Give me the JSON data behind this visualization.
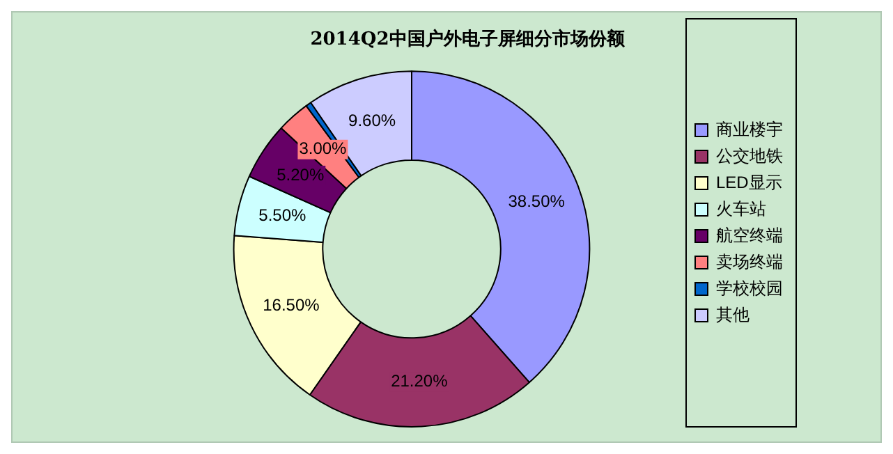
{
  "chart_data": {
    "type": "donut",
    "title": "2014Q2中国户外电子屏细分市场份额",
    "categories": [
      "商业楼宇",
      "公交地铁",
      "LED显示",
      "火车站",
      "航空终端",
      "卖场终端",
      "学校校园",
      "其他"
    ],
    "values": [
      38.5,
      21.2,
      16.5,
      5.5,
      5.2,
      3.0,
      0.5,
      9.6
    ],
    "value_labels": [
      "38.50%",
      "21.20%",
      "16.50%",
      "5.50%",
      "5.20%",
      "3.00%",
      null,
      "9.60%"
    ],
    "colors": [
      "#9999ff",
      "#993366",
      "#ffffcc",
      "#ccffff",
      "#660066",
      "#ff8080",
      "#0066cc",
      "#ccccff"
    ],
    "legend": "right"
  }
}
